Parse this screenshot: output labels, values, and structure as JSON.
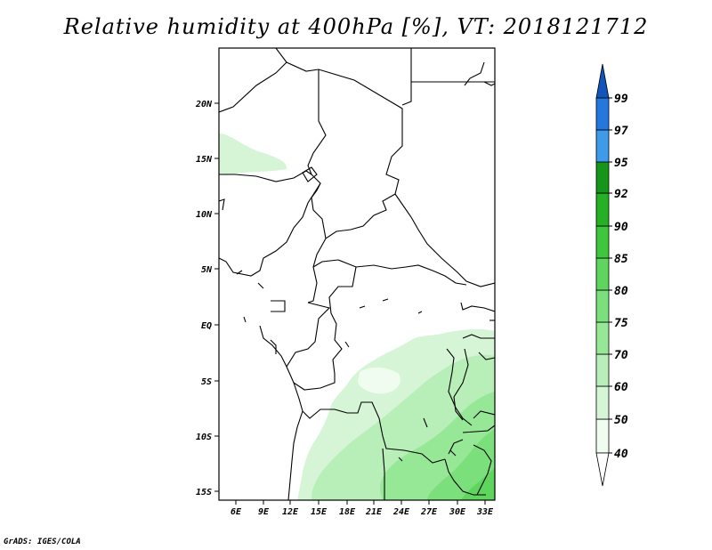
{
  "title": "Relative humidity at 400hPa [%], VT: 2018121712",
  "footer": "GrADS: IGES/COLA",
  "map": {
    "lat_labels": [
      "20N",
      "15N",
      "10N",
      "5N",
      "EQ",
      "5S",
      "10S",
      "15S"
    ],
    "lon_labels": [
      "6E",
      "9E",
      "12E",
      "15E",
      "18E",
      "21E",
      "24E",
      "27E",
      "30E",
      "33E"
    ]
  },
  "colorbar": {
    "labels": [
      "40",
      "50",
      "60",
      "70",
      "75",
      "80",
      "85",
      "90",
      "92",
      "95",
      "97",
      "99"
    ],
    "colors": [
      "#f0fcf0",
      "#d6f5d6",
      "#b8efb8",
      "#96e896",
      "#7be07b",
      "#5ed65e",
      "#3ec63e",
      "#25b025",
      "#15961a",
      "#3d9be9",
      "#2377dd",
      "#1155bb"
    ]
  }
}
